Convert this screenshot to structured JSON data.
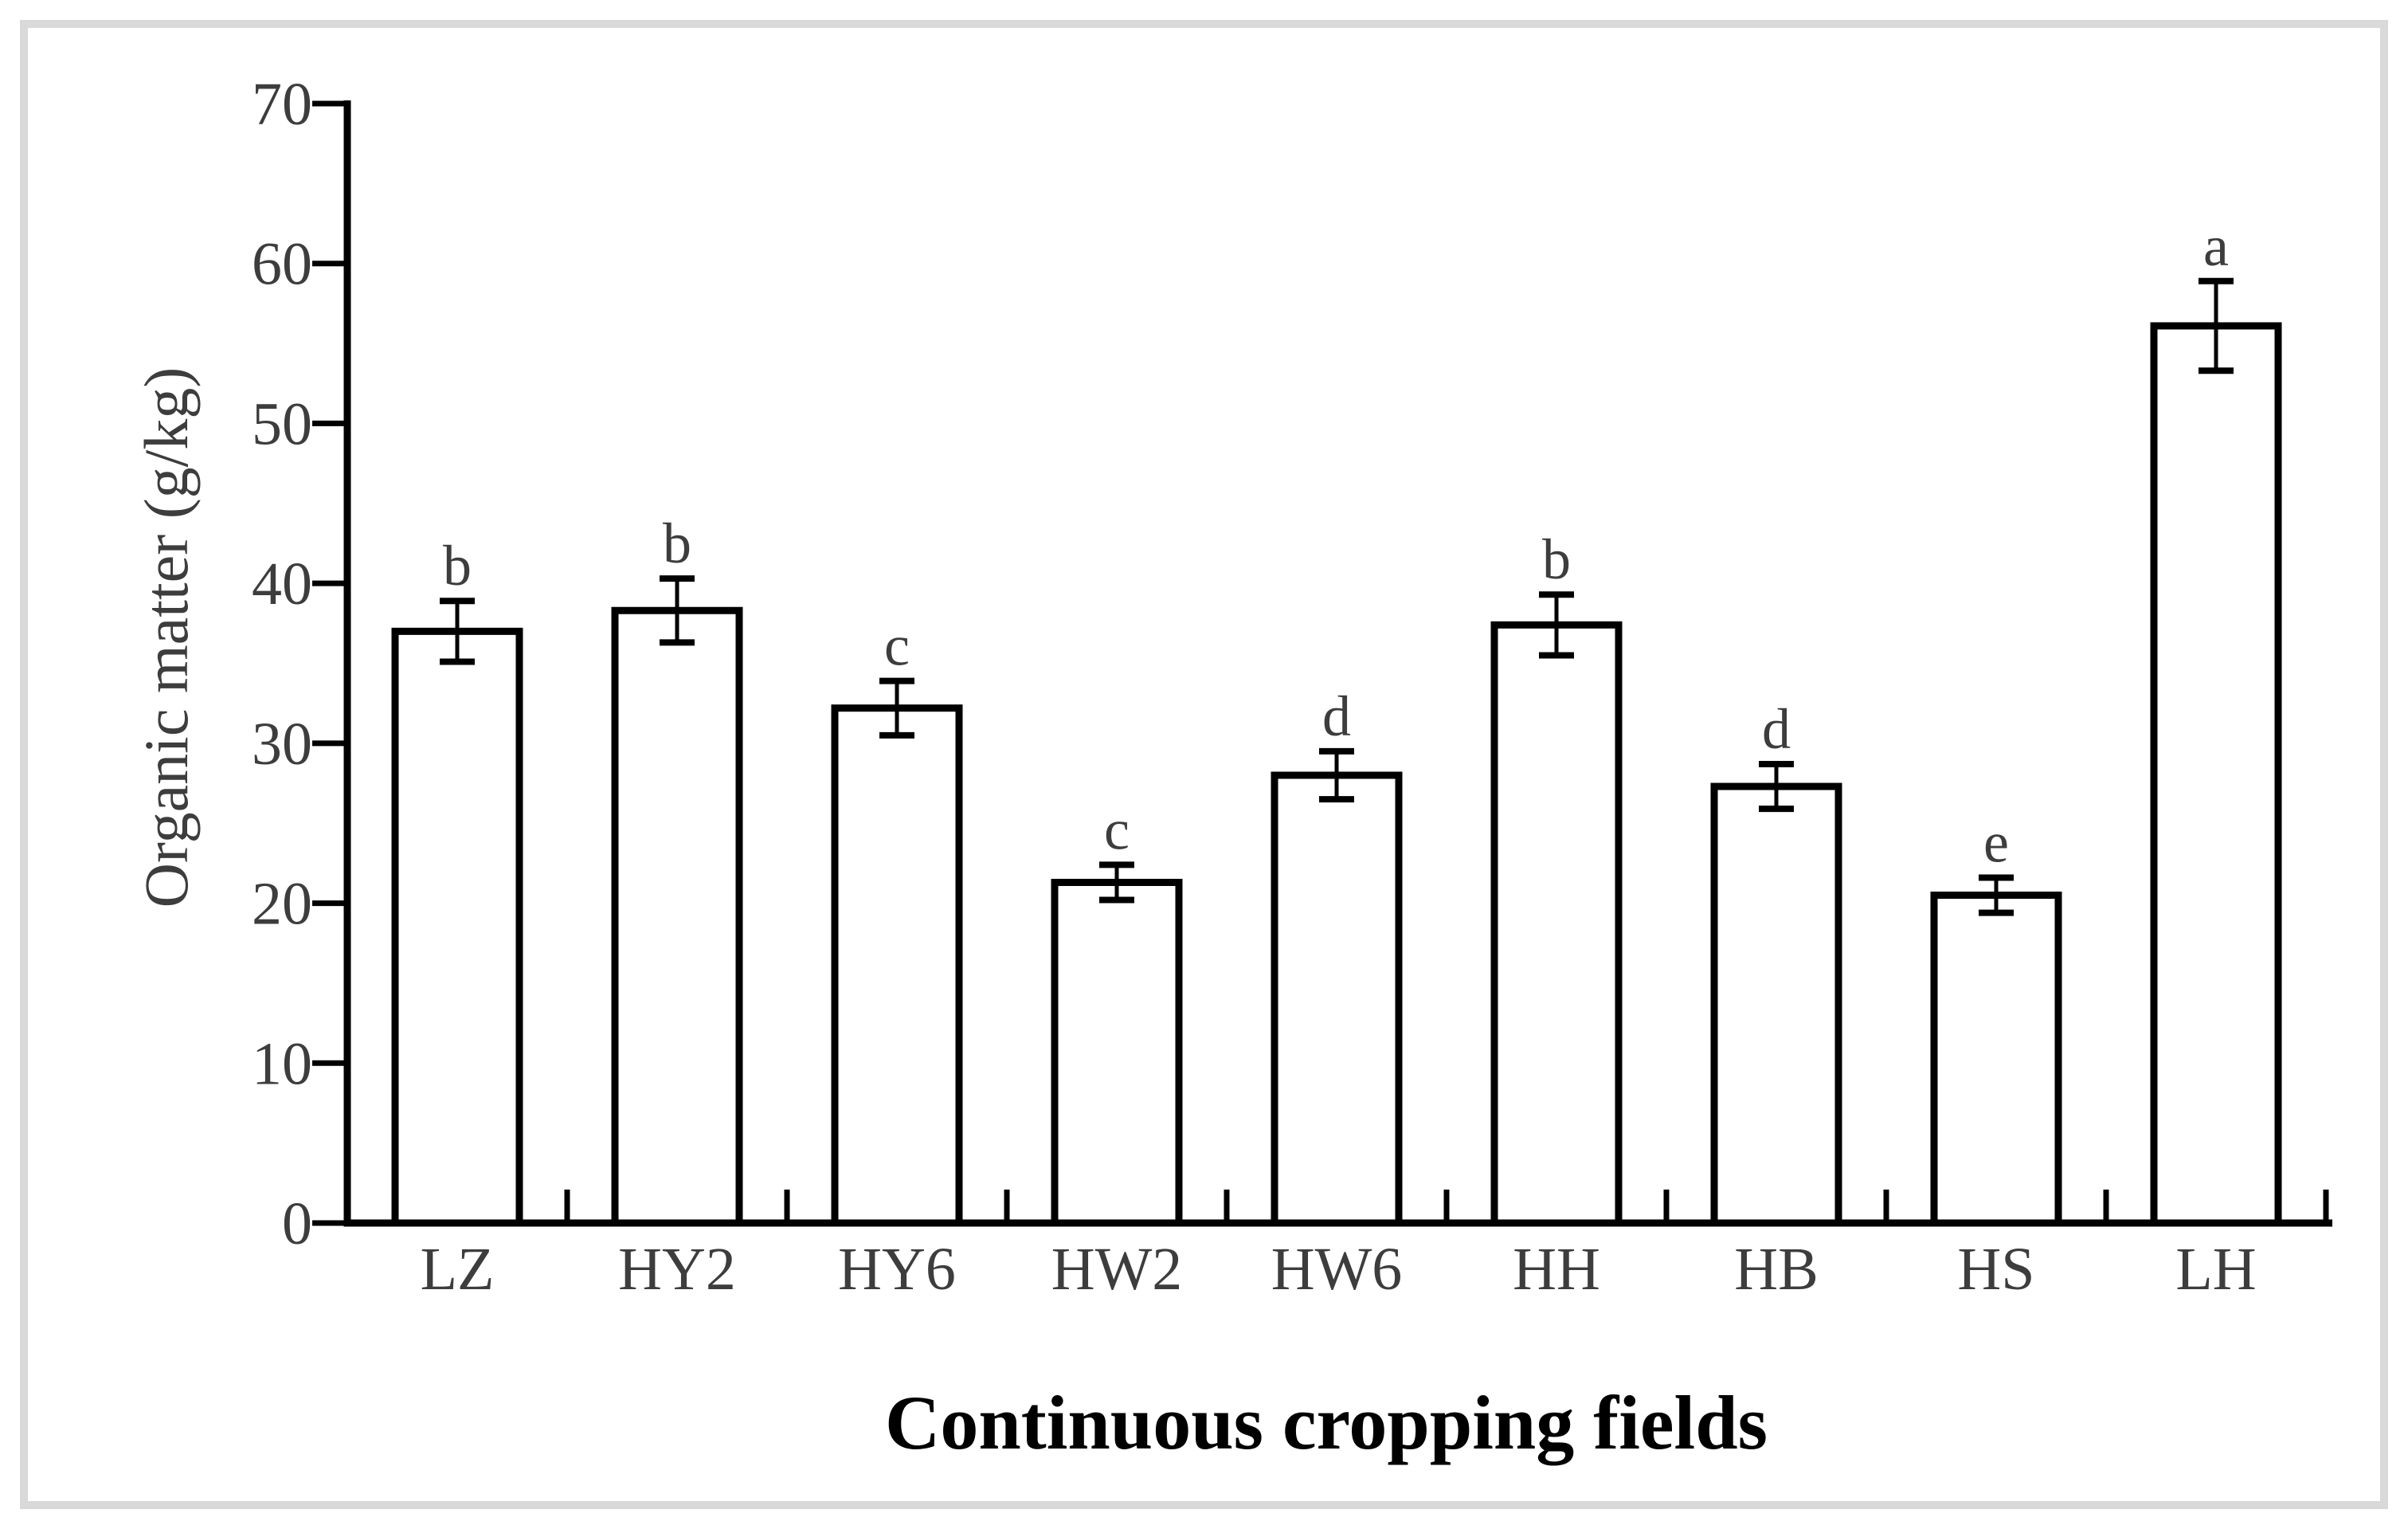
{
  "figure": {
    "background_color": "#ffffff",
    "border_color": "#d9d9d9",
    "ink_color": "#000000",
    "text_color": "#3d3d3d",
    "bar_fill": "#ffffff"
  },
  "chart_data": {
    "type": "bar",
    "title": "",
    "xlabel": "Continuous cropping fields",
    "ylabel": "Organic matter (g/kg)",
    "categories": [
      "LZ",
      "HY2",
      "HY6",
      "HW2",
      "HW6",
      "HH",
      "HB",
      "HS",
      "LH"
    ],
    "values": [
      37.0,
      38.3,
      32.2,
      21.3,
      28.0,
      37.4,
      27.3,
      20.5,
      56.1
    ],
    "error_bars": [
      1.9,
      2.0,
      1.7,
      1.1,
      1.5,
      1.9,
      1.4,
      1.1,
      2.8
    ],
    "significance_letters": [
      "b",
      "b",
      "c",
      "c",
      "d",
      "b",
      "d",
      "e",
      "a"
    ],
    "yticks": [
      0,
      10,
      20,
      30,
      40,
      50,
      60,
      70
    ],
    "ylim": [
      0,
      70
    ],
    "grid": false,
    "legend": "none",
    "bar_outline": "black",
    "error_bar_style": "capped, symmetric"
  }
}
